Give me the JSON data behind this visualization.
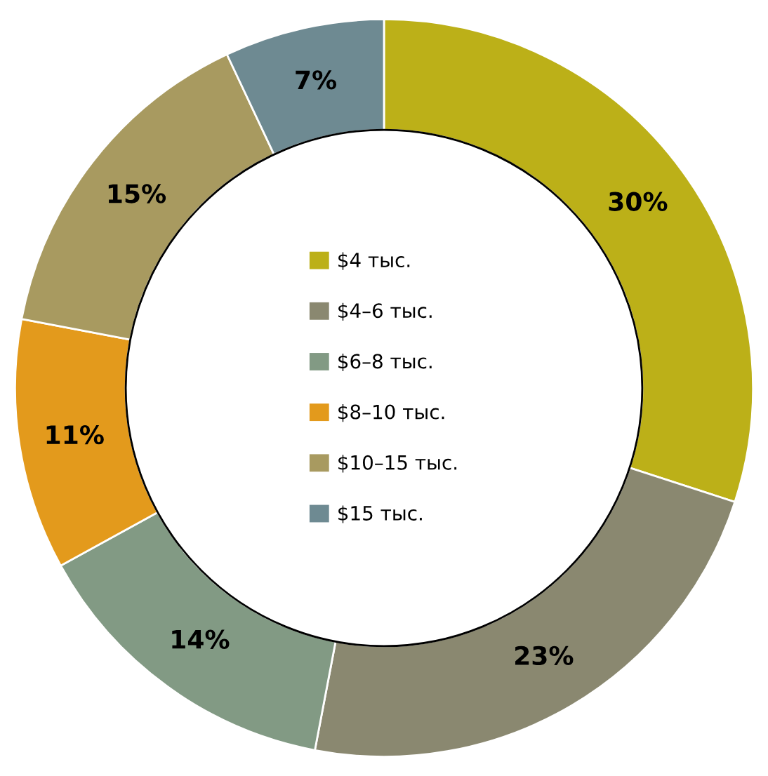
{
  "chart_data": {
    "type": "donut",
    "categories": [
      "$4 тыс.",
      "$4–6 тыс.",
      "$6–8 тыс.",
      "$8–10 тыс.",
      "$10–15 тыс.",
      "$15 тыс."
    ],
    "values": [
      30,
      23,
      14,
      11,
      15,
      7
    ],
    "colors": [
      "#bcb018",
      "#8a8870",
      "#829a84",
      "#e39a1c",
      "#a89a60",
      "#6e8a92"
    ],
    "value_labels": [
      "30%",
      "23%",
      "14%",
      "11%",
      "15%",
      "7%"
    ],
    "legend": "center"
  }
}
